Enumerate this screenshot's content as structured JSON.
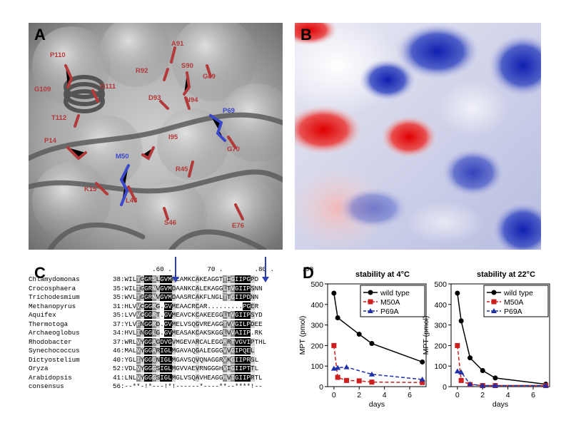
{
  "panel_labels": {
    "a": "A",
    "b": "B",
    "c": "C",
    "d": "D"
  },
  "panelA": {
    "residues": [
      {
        "label": "P110",
        "color": "#b33a3a"
      },
      {
        "label": "A91",
        "color": "#b33a3a"
      },
      {
        "label": "R92",
        "color": "#b33a3a"
      },
      {
        "label": "S90",
        "color": "#b33a3a"
      },
      {
        "label": "G89",
        "color": "#b33a3a"
      },
      {
        "label": "G109",
        "color": "#b33a3a"
      },
      {
        "label": "G111",
        "color": "#b33a3a"
      },
      {
        "label": "D93",
        "color": "#b33a3a"
      },
      {
        "label": "N94",
        "color": "#b33a3a"
      },
      {
        "label": "T112",
        "color": "#b33a3a"
      },
      {
        "label": "P69",
        "color": "#3a48c8"
      },
      {
        "label": "P14",
        "color": "#b33a3a"
      },
      {
        "label": "I95",
        "color": "#b33a3a"
      },
      {
        "label": "G70",
        "color": "#b33a3a"
      },
      {
        "label": "M50",
        "color": "#3a48c8"
      },
      {
        "label": "R45",
        "color": "#b33a3a"
      },
      {
        "label": "K15",
        "color": "#b33a3a"
      },
      {
        "label": "L47",
        "color": "#b33a3a"
      },
      {
        "label": "S46",
        "color": "#b33a3a"
      },
      {
        "label": "E76",
        "color": "#b33a3a"
      }
    ]
  },
  "panelC": {
    "ruler": "          .60 .         70 .        .80 .       .90",
    "rows": [
      {
        "name": "Chlamydomonas",
        "start": "38:",
        "seq": "WILTGGRSLGVMHEAMKCAKEAGGTTIGIIPGPD"
      },
      {
        "name": "Crocosphaera",
        "start": "35:",
        "seq": "WILTGGRNVGVMDAANKCALEKAGGLTVGIIPSNN"
      },
      {
        "name": "Trichodesmium",
        "start": "35:",
        "seq": "WVLTGGRNVGVMDAASRCAKFLNGLTTGIIPDNN"
      },
      {
        "name": "Methanopyrus",
        "start": "31:",
        "seq": "HLVVCGGRG.GVMEAACRCAR.........PGER"
      },
      {
        "name": "Aquifex",
        "start": "35:",
        "seq": "LVVVCGGRT.GVMEAVCKCAKEEGGLTVGIIPSYD"
      },
      {
        "name": "Thermotoga",
        "start": "37:",
        "seq": "YLVFNGGRD.GVMELVSQGVREAGGTVVGILPDEE"
      },
      {
        "name": "Archaeoglobus",
        "start": "34:",
        "seq": "HVLINGGLG.GVMEASAKCAKSKGGLVVAIIP.RK"
      },
      {
        "name": "Rhodobacter",
        "start": "37:",
        "seq": "WRLVYGGAGDVGVMGEVARCALEGGRRTVGVIPTHL"
      },
      {
        "name": "Synechococcus",
        "start": "46:",
        "seq": "MALVYGGARIGLMGAVAQGALEGGGVVGIPQEL"
      },
      {
        "name": "Dictyostelium",
        "start": "40:",
        "seq": "YGLIYGGGNIGLMGAVSQVQNAGGRVKGIIPRSL"
      },
      {
        "name": "Oryza",
        "start": "52:",
        "seq": "VDLVYGGGSIGLMGVVAEVRNGGGHVIGIIPTTL"
      },
      {
        "name": "Arabidopsis",
        "start": "41:",
        "seq": "LNLVYGGGSIGLMGLVSQAVHEAGGHVIGIIPRTL"
      },
      {
        "name": "consensus",
        "start": "56:",
        "seq": "--**-!*---!*!------*----**--****!--"
      }
    ],
    "arrow_color": "#2a3fb0"
  },
  "chart_data": [
    {
      "type": "line",
      "title": "stability at 4°C",
      "xlabel": "days",
      "ylabel": "MPT (pmol)",
      "xlim": [
        -0.5,
        7.3
      ],
      "ylim": [
        0,
        500
      ],
      "xticks": [
        0,
        2,
        4,
        6
      ],
      "yticks": [
        0,
        100,
        200,
        300,
        400,
        500
      ],
      "legend_position": "top-right",
      "series": [
        {
          "name": "wild type",
          "color": "#000000",
          "marker": "circle",
          "dash": "solid",
          "x": [
            0,
            0.3,
            2,
            3,
            7
          ],
          "y": [
            455,
            335,
            255,
            210,
            120
          ]
        },
        {
          "name": "M50A",
          "color": "#cc1f1f",
          "marker": "square",
          "dash": "dashed",
          "x": [
            0,
            0.3,
            1,
            2,
            3,
            7
          ],
          "y": [
            200,
            45,
            30,
            28,
            22,
            20
          ]
        },
        {
          "name": "P69A",
          "color": "#1f2fa8",
          "marker": "triangle",
          "dash": "dashed",
          "x": [
            0,
            0.3,
            1,
            3,
            7
          ],
          "y": [
            88,
            92,
            95,
            60,
            35
          ]
        }
      ]
    },
    {
      "type": "line",
      "title": "stability at 22°C",
      "xlabel": "days",
      "ylabel": "MPT (pmol)",
      "xlim": [
        -0.5,
        7.3
      ],
      "ylim": [
        0,
        500
      ],
      "xticks": [
        0,
        2,
        4,
        6
      ],
      "yticks": [
        0,
        100,
        200,
        300,
        400,
        500
      ],
      "legend_position": "top-right",
      "series": [
        {
          "name": "wild type",
          "color": "#000000",
          "marker": "circle",
          "dash": "solid",
          "x": [
            0,
            0.3,
            1,
            2,
            3,
            7
          ],
          "y": [
            455,
            320,
            140,
            78,
            42,
            12
          ]
        },
        {
          "name": "M50A",
          "color": "#cc1f1f",
          "marker": "square",
          "dash": "dashed",
          "x": [
            0,
            0.3,
            1,
            2,
            3,
            7
          ],
          "y": [
            200,
            30,
            10,
            5,
            5,
            5
          ]
        },
        {
          "name": "P69A",
          "color": "#1f2fa8",
          "marker": "triangle",
          "dash": "dashed",
          "x": [
            0,
            0.3,
            1,
            2,
            3,
            7
          ],
          "y": [
            75,
            70,
            12,
            5,
            5,
            5
          ]
        }
      ]
    }
  ]
}
